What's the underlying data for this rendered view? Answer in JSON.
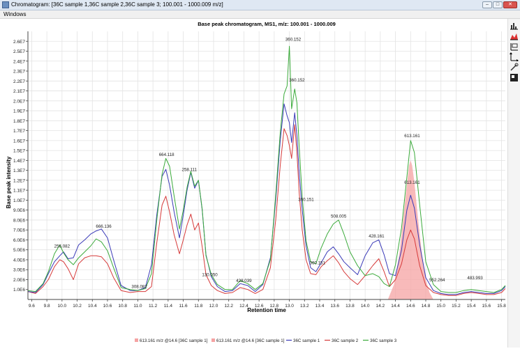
{
  "window": {
    "title": "Chromatogram: [36C sample 1,36C sample 2,36C sample 3; 100.001 - 1000.009 m/z]",
    "buttons": {
      "minimize": "–",
      "maximize": "□",
      "close": "✕"
    }
  },
  "menu": {
    "items": [
      "Windows"
    ]
  },
  "toolbar": {
    "tools": [
      "bar-chart-icon",
      "area-chart-icon",
      "axis-range-icon",
      "axes-icon",
      "annotation-icon",
      "color-icon"
    ]
  },
  "chart_data": {
    "type": "line",
    "title": "Base peak chromatogram, MS1, m/z: 100.001 - 1000.009",
    "xlabel": "Retention time",
    "ylabel": "Base peak intensity",
    "xlim": [
      9.55,
      15.85
    ],
    "ylim": [
      0,
      27000000.0
    ],
    "x_ticks": [
      "9.6",
      "9.8",
      "10.0",
      "10.2",
      "10.4",
      "10.6",
      "10.8",
      "11.0",
      "11.2",
      "11.4",
      "11.6",
      "11.8",
      "12.0",
      "12.2",
      "12.4",
      "12.6",
      "12.8",
      "13.0",
      "13.2",
      "13.4",
      "13.6",
      "13.8",
      "14.0",
      "14.2",
      "14.4",
      "14.6",
      "14.8",
      "15.0",
      "15.2",
      "15.4",
      "15.6",
      "15.8"
    ],
    "y_ticks": [
      "1.0E6",
      "2.0E6",
      "3.0E6",
      "4.0E6",
      "5.0E6",
      "6.0E6",
      "7.0E6",
      "8.0E6",
      "9.0E6",
      "1.0E7",
      "1.1E7",
      "1.2E7",
      "1.3E7",
      "1.4E7",
      "1.5E7",
      "1.6E7",
      "1.7E7",
      "1.8E7",
      "1.9E7",
      "2.0E7",
      "2.1E7",
      "2.2E7",
      "2.3E7",
      "2.4E7",
      "2.5E7",
      "2.6E7"
    ],
    "grid": true,
    "legend_position": "bottom",
    "series": [
      {
        "name": "36C sample 1",
        "color": "#3a3ab8",
        "x": [
          9.55,
          9.65,
          9.75,
          9.82,
          9.9,
          9.97,
          10.02,
          10.08,
          10.15,
          10.22,
          10.3,
          10.38,
          10.45,
          10.52,
          10.6,
          10.68,
          10.78,
          10.9,
          11.0,
          11.1,
          11.18,
          11.25,
          11.32,
          11.37,
          11.42,
          11.48,
          11.55,
          11.6,
          11.65,
          11.7,
          11.75,
          11.8,
          11.85,
          11.9,
          11.97,
          12.05,
          12.15,
          12.25,
          12.35,
          12.45,
          12.55,
          12.65,
          12.75,
          12.82,
          12.88,
          12.93,
          12.97,
          13.0,
          13.03,
          13.07,
          13.1,
          13.13,
          13.17,
          13.22,
          13.28,
          13.35,
          13.42,
          13.5,
          13.58,
          13.65,
          13.72,
          13.8,
          13.9,
          14.0,
          14.1,
          14.18,
          14.25,
          14.32,
          14.4,
          14.48,
          14.55,
          14.6,
          14.65,
          14.72,
          14.8,
          14.9,
          15.0,
          15.1,
          15.2,
          15.3,
          15.4,
          15.5,
          15.6,
          15.7,
          15.8,
          15.85
        ],
        "y": [
          800000,
          700000,
          1500000,
          2600000,
          3800000,
          4400000,
          4800000,
          4100000,
          4200000,
          5500000,
          6000000,
          6600000,
          6900000,
          7100000,
          6200000,
          4000000,
          1400000,
          900000,
          900000,
          1200000,
          3500000,
          8500000,
          12400000,
          13100000,
          11500000,
          8800000,
          6200000,
          8500000,
          11000000,
          12800000,
          11200000,
          12000000,
          9000000,
          4500000,
          2300000,
          1300000,
          800000,
          900000,
          1600000,
          1400000,
          800000,
          1500000,
          4200000,
          10000000,
          16000000,
          19700000,
          18500000,
          17800000,
          15800000,
          18800000,
          16500000,
          12700000,
          9000000,
          5400000,
          3200000,
          2800000,
          3700000,
          4800000,
          5300000,
          4600000,
          3800000,
          3200000,
          2500000,
          4400000,
          5700000,
          6000000,
          4500000,
          2600000,
          2400000,
          5000000,
          9000000,
          10500000,
          9200000,
          5500000,
          2200000,
          900000,
          600000,
          500000,
          500000,
          700000,
          800000,
          700000,
          600000,
          600000,
          900000,
          1300000
        ]
      },
      {
        "name": "36C sample 2",
        "color": "#d63a3a",
        "x": [
          9.55,
          9.65,
          9.75,
          9.82,
          9.9,
          9.97,
          10.02,
          10.08,
          10.15,
          10.22,
          10.3,
          10.38,
          10.45,
          10.52,
          10.6,
          10.68,
          10.78,
          10.9,
          11.0,
          11.1,
          11.18,
          11.25,
          11.32,
          11.37,
          11.42,
          11.48,
          11.55,
          11.6,
          11.65,
          11.7,
          11.75,
          11.8,
          11.85,
          11.9,
          11.97,
          12.05,
          12.15,
          12.25,
          12.35,
          12.45,
          12.55,
          12.65,
          12.75,
          12.82,
          12.88,
          12.93,
          12.97,
          13.0,
          13.03,
          13.07,
          13.1,
          13.13,
          13.17,
          13.22,
          13.28,
          13.35,
          13.42,
          13.5,
          13.58,
          13.65,
          13.72,
          13.8,
          13.9,
          14.0,
          14.1,
          14.18,
          14.25,
          14.32,
          14.4,
          14.48,
          14.55,
          14.6,
          14.65,
          14.72,
          14.8,
          14.9,
          15.0,
          15.1,
          15.2,
          15.3,
          15.4,
          15.5,
          15.6,
          15.7,
          15.8,
          15.85
        ],
        "y": [
          800000,
          600000,
          1300000,
          2000000,
          3300000,
          4000000,
          3800000,
          3100000,
          2000000,
          3600000,
          4200000,
          4400000,
          4400000,
          4300000,
          3600000,
          2200000,
          900000,
          700000,
          800000,
          800000,
          1300000,
          5700000,
          9500000,
          10400000,
          8800000,
          6500000,
          4600000,
          6000000,
          7500000,
          8600000,
          7000000,
          7700000,
          5300000,
          2500000,
          1400000,
          900000,
          600000,
          700000,
          1200000,
          1000000,
          600000,
          1000000,
          3200000,
          8000000,
          13500000,
          17200000,
          16500000,
          15500000,
          14200000,
          17600000,
          14800000,
          10700000,
          7000000,
          4000000,
          2600000,
          2500000,
          3300000,
          3900000,
          4400000,
          3700000,
          2800000,
          2100000,
          1500000,
          2400000,
          3400000,
          4100000,
          2800000,
          1300000,
          2000000,
          3600000,
          6000000,
          7000000,
          6100000,
          3400000,
          1400000,
          700000,
          500000,
          400000,
          400000,
          600000,
          700000,
          600000,
          500000,
          500000,
          700000,
          1100000
        ]
      },
      {
        "name": "36C sample 3",
        "color": "#3aaa3a",
        "x": [
          9.55,
          9.65,
          9.75,
          9.82,
          9.9,
          9.97,
          10.02,
          10.08,
          10.15,
          10.22,
          10.3,
          10.38,
          10.45,
          10.52,
          10.6,
          10.68,
          10.78,
          10.9,
          11.0,
          11.1,
          11.18,
          11.25,
          11.32,
          11.37,
          11.42,
          11.48,
          11.55,
          11.6,
          11.65,
          11.7,
          11.75,
          11.8,
          11.85,
          11.9,
          11.97,
          12.05,
          12.15,
          12.25,
          12.35,
          12.45,
          12.55,
          12.65,
          12.75,
          12.82,
          12.88,
          12.93,
          12.97,
          13.0,
          13.03,
          13.07,
          13.1,
          13.13,
          13.17,
          13.22,
          13.28,
          13.35,
          13.42,
          13.5,
          13.58,
          13.65,
          13.72,
          13.8,
          13.9,
          14.0,
          14.1,
          14.18,
          14.25,
          14.32,
          14.4,
          14.48,
          14.55,
          14.6,
          14.65,
          14.72,
          14.8,
          14.9,
          15.0,
          15.1,
          15.2,
          15.3,
          15.4,
          15.5,
          15.6,
          15.7,
          15.8,
          15.85
        ],
        "y": [
          900000,
          800000,
          1600000,
          2800000,
          4600000,
          5500000,
          4700000,
          4000000,
          3500000,
          4200000,
          4800000,
          5400000,
          6100000,
          5800000,
          4900000,
          3200000,
          1200000,
          1000000,
          900000,
          1100000,
          2600000,
          8000000,
          12600000,
          14200000,
          13400000,
          10400000,
          7100000,
          9000000,
          11300000,
          12900000,
          11400000,
          12000000,
          9100000,
          4400000,
          2500000,
          1500000,
          1000000,
          1000000,
          1900000,
          1600000,
          1000000,
          1600000,
          4000000,
          10500000,
          16800000,
          20700000,
          21500000,
          25500000,
          19200000,
          21200000,
          19800000,
          15300000,
          10300000,
          5900000,
          3800000,
          3600000,
          5200000,
          6600000,
          7600000,
          8000000,
          6600000,
          4800000,
          3400000,
          2400000,
          2600000,
          2300000,
          1600000,
          1300000,
          3500000,
          7200000,
          12300000,
          16000000,
          14800000,
          9500000,
          3800000,
          1500000,
          800000,
          700000,
          700000,
          900000,
          1000000,
          900000,
          800000,
          700000,
          1000000,
          1400000
        ]
      }
    ],
    "filled_peak": {
      "name": "613.161 m/z @14.6 [36C sample 1]",
      "color": "#f5a3a3",
      "x": [
        14.3,
        14.38,
        14.45,
        14.5,
        14.55,
        14.58,
        14.6,
        14.62,
        14.65,
        14.7,
        14.75,
        14.8,
        14.85,
        14.9
      ],
      "y": [
        0,
        1500000,
        4500000,
        8000000,
        11500000,
        13500000,
        14000000,
        13500000,
        11800000,
        8000000,
        4500000,
        2000000,
        700000,
        0
      ]
    },
    "annotations": [
      {
        "x": 10.0,
        "y": 5100000,
        "text": "256.082"
      },
      {
        "x": 10.55,
        "y": 7100000,
        "text": "666.136"
      },
      {
        "x": 11.02,
        "y": 1000000,
        "text": "308.082"
      },
      {
        "x": 11.38,
        "y": 14300000,
        "text": "664.118"
      },
      {
        "x": 11.68,
        "y": 12800000,
        "text": "258.111"
      },
      {
        "x": 11.95,
        "y": 2200000,
        "text": "130.050"
      },
      {
        "x": 12.4,
        "y": 1600000,
        "text": "428.039"
      },
      {
        "x": 13.05,
        "y": 25900000,
        "text": "360.152"
      },
      {
        "x": 13.1,
        "y": 21800000,
        "text": "360.152"
      },
      {
        "x": 13.22,
        "y": 9800000,
        "text": "360.151"
      },
      {
        "x": 13.37,
        "y": 3400000,
        "text": "360.151"
      },
      {
        "x": 13.65,
        "y": 8100000,
        "text": "508.005"
      },
      {
        "x": 14.15,
        "y": 6100000,
        "text": "428.161"
      },
      {
        "x": 14.62,
        "y": 16200000,
        "text": "613.161"
      },
      {
        "x": 14.62,
        "y": 11500000,
        "text": "613.161"
      },
      {
        "x": 14.95,
        "y": 1700000,
        "text": "552.264"
      },
      {
        "x": 15.45,
        "y": 1900000,
        "text": "483.993"
      }
    ],
    "legend": [
      {
        "label": "613.161 m/z @14.6 [36C sample 1]",
        "color": "#f5a3a3",
        "kind": "square"
      },
      {
        "label": "613.161 m/z @14.6 [36C sample 1]",
        "color": "#f5a3a3",
        "kind": "square"
      },
      {
        "label": "36C sample 1",
        "color": "#3a3ab8",
        "kind": "line"
      },
      {
        "label": "36C sample 2",
        "color": "#d63a3a",
        "kind": "line"
      },
      {
        "label": "36C sample 3",
        "color": "#3aaa3a",
        "kind": "line"
      }
    ]
  }
}
